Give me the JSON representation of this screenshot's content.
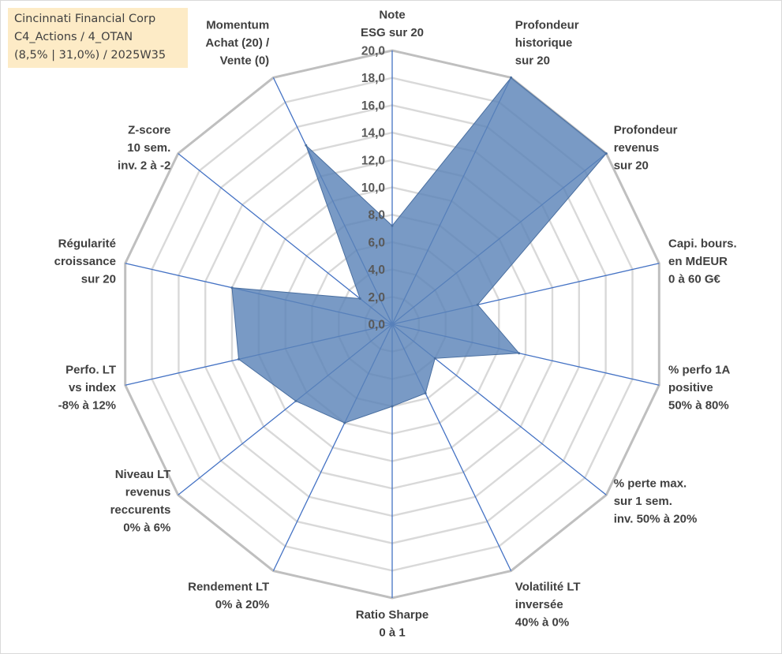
{
  "info": {
    "line1": "Cincinnati Financial Corp",
    "line2": "C4_Actions / 4_OTAN",
    "line3": "(8,5% | 31,0%) / 2025W35"
  },
  "chart_data": {
    "type": "radar",
    "rmin": 0,
    "rmax": 20,
    "tick_step": 2,
    "ticks": [
      "0,0",
      "2,0",
      "4,0",
      "6,0",
      "8,0",
      "10,0",
      "12,0",
      "14,0",
      "16,0",
      "18,0",
      "20,0"
    ],
    "grid": true,
    "series_color": "#5b84b8",
    "axes": [
      {
        "label": [
          "Note",
          "ESG sur 20"
        ],
        "value": 7.2
      },
      {
        "label": [
          "Profondeur",
          "historique",
          "sur 20"
        ],
        "value": 20.0
      },
      {
        "label": [
          "Profondeur",
          "revenus",
          "sur 20"
        ],
        "value": 20.0
      },
      {
        "label": [
          "Capi. bours.",
          "en MdEUR",
          "0 à 60 G€"
        ],
        "value": 6.4
      },
      {
        "label": [
          "% perfo 1A",
          "positive",
          "50% à 80%"
        ],
        "value": 9.5
      },
      {
        "label": [
          "% perte max.",
          "sur 1 sem.",
          "inv. 50% à 20%"
        ],
        "value": 4.0
      },
      {
        "label": [
          "Volatilité LT",
          "inversée",
          "40% à 0%"
        ],
        "value": 5.6
      },
      {
        "label": [
          "Ratio Sharpe",
          "0 à 1"
        ],
        "value": 6.0
      },
      {
        "label": [
          "Rendement LT",
          "0% à 20%"
        ],
        "value": 8.0
      },
      {
        "label": [
          "Niveau LT",
          "revenus",
          "reccurents",
          "0% à 6%"
        ],
        "value": 9.0
      },
      {
        "label": [
          "Perfo. LT",
          "vs index",
          "-8% à 12%"
        ],
        "value": 11.5
      },
      {
        "label": [
          "Régularité",
          "croissance",
          "sur 20"
        ],
        "value": 12.0
      },
      {
        "label": [
          "Z-score",
          "10 sem.",
          "inv. 2 à -2"
        ],
        "value": 3.0
      },
      {
        "label": [
          "Momentum",
          "Achat (20) /",
          "Vente (0)"
        ],
        "value": 14.5
      }
    ]
  }
}
